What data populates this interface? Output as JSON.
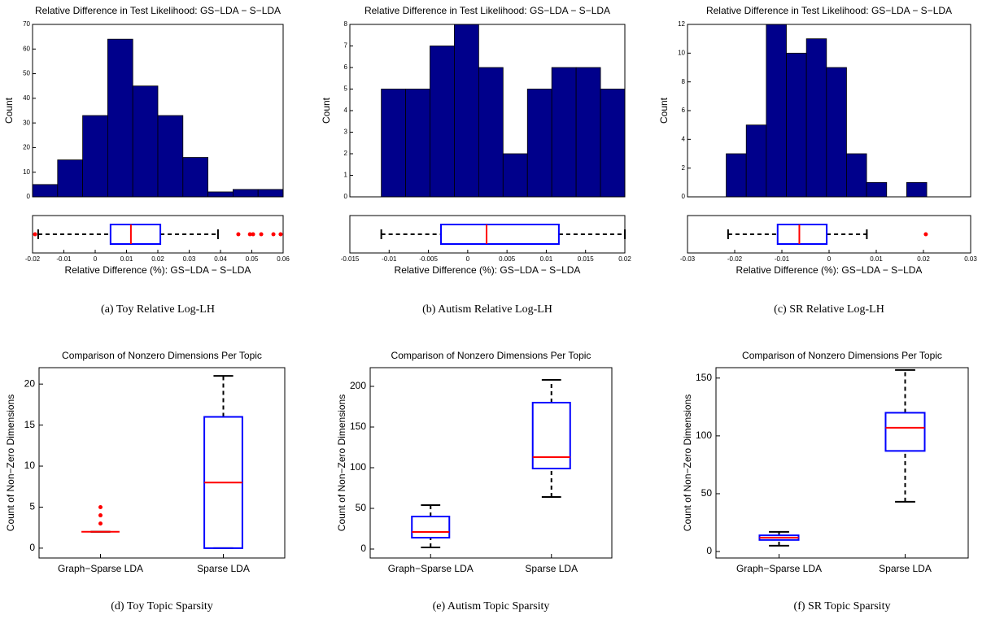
{
  "chart_data": [
    {
      "type": "histogram",
      "title": "Relative Difference in Test Likelihood: GS−LDA − S−LDA",
      "ylabel": "Count",
      "bins": [
        -0.02,
        -0.012,
        -0.004,
        0.004,
        0.012,
        0.02,
        0.028,
        0.036,
        0.044,
        0.052,
        0.06
      ],
      "counts": [
        5,
        15,
        33,
        64,
        45,
        33,
        16,
        2,
        3,
        3
      ],
      "color": "#00008b",
      "xlim": [
        -0.02,
        0.06
      ],
      "ylim": [
        0,
        70
      ],
      "yticks": [
        0,
        10,
        20,
        30,
        40,
        50,
        60,
        70
      ],
      "box": {
        "xlabel": "Relative Difference (%): GS−LDA − S−LDA",
        "xlim": [
          -0.02,
          0.06
        ],
        "xticks": [
          -0.02,
          -0.01,
          0,
          0.01,
          0.02,
          0.03,
          0.04,
          0.05,
          0.06
        ],
        "whisker_low": -0.0182,
        "q1": 0.0049,
        "median": 0.0114,
        "q3": 0.0208,
        "whisker_high": 0.0392,
        "outliers": [
          -0.0192,
          0.0457,
          0.0494,
          0.0504,
          0.053,
          0.0569,
          0.0592
        ]
      },
      "caption": "(a) Toy Relative Log-LH"
    },
    {
      "type": "histogram",
      "title": "Relative Difference in Test Likelihood: GS−LDA − S−LDA",
      "ylabel": "Count",
      "bins": [
        -0.011,
        -0.0079,
        -0.0048,
        -0.0017,
        0.0014,
        0.0045,
        0.0076,
        0.0107,
        0.0138,
        0.0169,
        0.02
      ],
      "counts": [
        5,
        5,
        7,
        8,
        6,
        2,
        5,
        6,
        6,
        5
      ],
      "color": "#00008b",
      "xlim": [
        -0.015,
        0.02
      ],
      "ylim": [
        0,
        8
      ],
      "yticks": [
        0,
        1,
        2,
        3,
        4,
        5,
        6,
        7,
        8
      ],
      "box": {
        "xlabel": "Relative Difference (%): GS−LDA − S−LDA",
        "xlim": [
          -0.015,
          0.02
        ],
        "xticks": [
          -0.015,
          -0.01,
          -0.005,
          0,
          0.005,
          0.01,
          0.015,
          0.02
        ],
        "whisker_low": -0.011,
        "q1": -0.0034,
        "median": 0.0024,
        "q3": 0.0116,
        "whisker_high": 0.02,
        "outliers": []
      },
      "caption": "(b) Autism Relative Log-LH"
    },
    {
      "type": "histogram",
      "title": "Relative Difference in Test Likelihood: GS−LDA − S−LDA",
      "ylabel": "Count",
      "bins": [
        -0.0218,
        -0.01755,
        -0.0133,
        -0.00905,
        -0.0048,
        -0.00055,
        0.0037,
        0.00795,
        0.0122,
        0.01645,
        0.0207
      ],
      "counts": [
        3,
        5,
        12,
        10,
        11,
        9,
        3,
        1,
        0,
        1
      ],
      "color": "#00008b",
      "xlim": [
        -0.03,
        0.03
      ],
      "ylim": [
        0,
        12
      ],
      "yticks": [
        0,
        2,
        4,
        6,
        8,
        10,
        12
      ],
      "box": {
        "xlabel": "Relative Difference (%): GS−LDA − S−LDA",
        "xlim": [
          -0.03,
          0.03
        ],
        "xticks": [
          -0.03,
          -0.02,
          -0.01,
          0,
          0.01,
          0.02,
          0.03
        ],
        "whisker_low": -0.0214,
        "q1": -0.0109,
        "median": -0.0063,
        "q3": -0.0005,
        "whisker_high": 0.008,
        "outliers": [
          0.0205
        ]
      },
      "caption": "(c) SR Relative Log-LH"
    },
    {
      "type": "boxplot",
      "title": "Comparison of Nonzero Dimensions Per Topic",
      "ylabel": "Count of Non−Zero Dimensions",
      "categories": [
        "Graph−Sparse LDA",
        "Sparse LDA"
      ],
      "boxes": [
        {
          "whisker_low": 2,
          "q1": 2,
          "median": 2,
          "q3": 2,
          "whisker_high": 2,
          "outliers": [
            3,
            4,
            5
          ]
        },
        {
          "whisker_low": 0,
          "q1": 0,
          "median": 8,
          "q3": 16,
          "whisker_high": 21,
          "outliers": []
        }
      ],
      "ylim": [
        -1.2,
        22
      ],
      "yticks": [
        0,
        5,
        10,
        15,
        20
      ],
      "caption": "(d) Toy Topic Sparsity"
    },
    {
      "type": "boxplot",
      "title": "Comparison of Nonzero Dimensions Per Topic",
      "ylabel": "Count of Non−Zero Dimensions",
      "categories": [
        "Graph−Sparse LDA",
        "Sparse LDA"
      ],
      "boxes": [
        {
          "whisker_low": 2,
          "q1": 14,
          "median": 21,
          "q3": 40,
          "whisker_high": 54,
          "outliers": []
        },
        {
          "whisker_low": 64,
          "q1": 99,
          "median": 113,
          "q3": 180,
          "whisker_high": 208,
          "outliers": []
        }
      ],
      "ylim": [
        -11,
        223
      ],
      "yticks": [
        0,
        50,
        100,
        150,
        200
      ],
      "caption": "(e) Autism Topic Sparsity"
    },
    {
      "type": "boxplot",
      "title": "Comparison of Nonzero Dimensions Per Topic",
      "ylabel": "Count of Non−Zero Dimensions",
      "categories": [
        "Graph−Sparse LDA",
        "Sparse LDA"
      ],
      "boxes": [
        {
          "whisker_low": 5,
          "q1": 10,
          "median": 12,
          "q3": 14,
          "whisker_high": 17,
          "outliers": []
        },
        {
          "whisker_low": 43,
          "q1": 87,
          "median": 107,
          "q3": 120,
          "whisker_high": 157,
          "outliers": []
        }
      ],
      "ylim": [
        -5.6,
        159
      ],
      "yticks": [
        0,
        50,
        100,
        150
      ],
      "caption": "(f) SR Topic Sparsity"
    }
  ]
}
